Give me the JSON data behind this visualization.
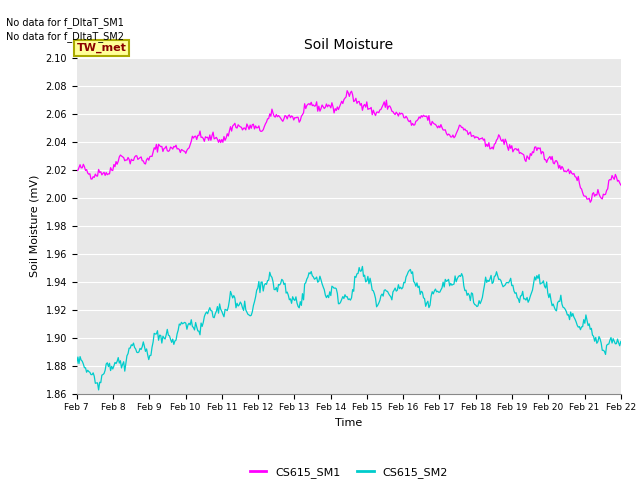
{
  "title": "Soil Moisture",
  "xlabel": "Time",
  "ylabel": "Soil Moisture (mV)",
  "ylim": [
    1.86,
    2.1
  ],
  "yticks": [
    1.86,
    1.88,
    1.9,
    1.92,
    1.94,
    1.96,
    1.98,
    2.0,
    2.02,
    2.04,
    2.06,
    2.08,
    2.1
  ],
  "xtick_labels": [
    "Feb 7",
    "Feb 8",
    "Feb 9",
    "Feb 10",
    "Feb 11",
    "Feb 12",
    "Feb 13",
    "Feb 14",
    "Feb 15",
    "Feb 16",
    "Feb 17",
    "Feb 18",
    "Feb 19",
    "Feb 20",
    "Feb 21",
    "Feb 22"
  ],
  "color_sm1": "#FF00FF",
  "color_sm2": "#00CCCC",
  "legend_label_sm1": "CS615_SM1",
  "legend_label_sm2": "CS615_SM2",
  "text_no_data1": "No data for f_DltaT_SM1",
  "text_no_data2": "No data for f_DltaT_SM2",
  "label_TW_met": "TW_met",
  "bg_color": "#E8E8E8",
  "fig_bg_color": "#FFFFFF",
  "grid_color": "#FFFFFF",
  "n_points": 500
}
